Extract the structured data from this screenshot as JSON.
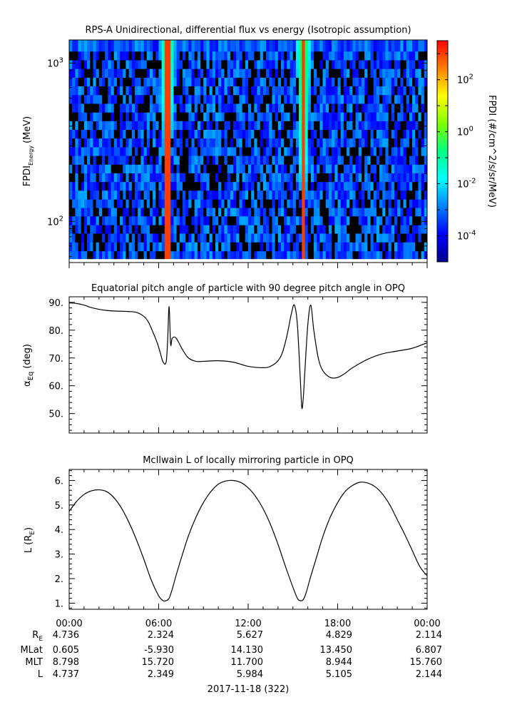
{
  "chart_data": [
    {
      "type": "heatmap",
      "title": "RPS-A Unidirectional, differential flux vs energy (Isotropic assumption)",
      "ylabel_main": "FPDI",
      "ylabel_sub": "Energy",
      "ylabel_unit": "(MeV)",
      "y_scale": "log",
      "ylim": [
        55,
        1400
      ],
      "y_ticks": [
        {
          "value": 100,
          "base": "10",
          "exp": "2"
        },
        {
          "value": 1000,
          "base": "10",
          "exp": "3"
        }
      ],
      "energy_channel_edges_mev": [
        58,
        65,
        74,
        84,
        95,
        108,
        122,
        138,
        157,
        178,
        202,
        229,
        260,
        295,
        335,
        380,
        431,
        489,
        555,
        630,
        715,
        811,
        921,
        1045,
        1186,
        1400
      ],
      "time_bins": 120,
      "flux_peaks_hours": [
        6.6,
        15.7
      ],
      "fill_color": "#000000",
      "colorbar": {
        "label": "FPDI (#/cm^2/s/sr/MeV)",
        "scale": "log",
        "range_log10": [
          -5.0,
          3.5
        ],
        "tick_labels": [
          {
            "value": 2,
            "base": "10",
            "exp": "2"
          },
          {
            "value": 0,
            "base": "10",
            "exp": "0"
          },
          {
            "value": -2,
            "base": "10",
            "exp": "-2"
          },
          {
            "value": -4,
            "base": "10",
            "exp": "-4"
          }
        ],
        "colormap": [
          "#00008f",
          "#0000ff",
          "#0080ff",
          "#00ffff",
          "#00ff80",
          "#80ff00",
          "#ffff00",
          "#ff8000",
          "#ff0000"
        ]
      }
    },
    {
      "type": "line",
      "title": "Equatorial pitch angle of particle with 90 degree pitch angle in OPQ",
      "ylabel_main": "α",
      "ylabel_sub": "Eq",
      "ylabel_unit": "(deg)",
      "ylim": [
        43,
        92
      ],
      "y_ticks": [
        "50.",
        "60.",
        "70.",
        "80.",
        "90."
      ],
      "xlim_hours": [
        0,
        24
      ],
      "series": [
        {
          "x": [
            0,
            0.5,
            1,
            1.5,
            2,
            2.5,
            3,
            3.5,
            4,
            4.5,
            5,
            5.3,
            5.6,
            5.9,
            6.1,
            6.3,
            6.5,
            6.6,
            6.7,
            6.8,
            6.9,
            7.1,
            7.3,
            7.6,
            8,
            8.5,
            9,
            10,
            11,
            12,
            13,
            13.5,
            14,
            14.3,
            14.6,
            14.9,
            15.1,
            15.3,
            15.5,
            15.6,
            15.7,
            15.8,
            16,
            16.2,
            16.4,
            16.7,
            17,
            17.5,
            18,
            18.5,
            19,
            20,
            21,
            22,
            23,
            24
          ],
          "y": [
            89.8,
            89.6,
            89.0,
            88.1,
            87.5,
            87.1,
            86.9,
            86.8,
            86.7,
            86.4,
            85.0,
            83.0,
            79.5,
            75.5,
            72.0,
            68.5,
            68.5,
            76.0,
            88.5,
            75.0,
            77.0,
            77.5,
            76.0,
            73.0,
            70.0,
            68.8,
            68.8,
            69.0,
            68.5,
            67.0,
            66.5,
            67.0,
            69.0,
            72.0,
            78.0,
            86.0,
            89.0,
            82.0,
            62.0,
            52.0,
            56.0,
            65.0,
            82.0,
            89.0,
            80.0,
            70.0,
            65.5,
            63.0,
            63.0,
            64.5,
            66.5,
            69.5,
            71.5,
            72.5,
            73.5,
            75.5
          ]
        }
      ]
    },
    {
      "type": "line",
      "title": "McIlwain L of locally mirroring particle in OPQ",
      "ylabel_main": "L",
      "ylabel_unit_pre": "(R",
      "ylabel_unit_sub": "E",
      "ylabel_unit_post": ")",
      "ylim": [
        0.75,
        6.45
      ],
      "y_ticks": [
        "1.",
        "2.",
        "3.",
        "4.",
        "5.",
        "6."
      ],
      "xlim_hours": [
        0,
        24
      ],
      "series": [
        {
          "x": [
            0,
            0.5,
            1,
            1.5,
            2,
            2.5,
            3,
            3.5,
            4,
            4.5,
            5,
            5.5,
            6,
            6.3,
            6.5,
            6.7,
            6.9,
            7.2,
            7.6,
            8,
            8.5,
            9,
            9.5,
            10,
            10.5,
            11,
            11.5,
            12,
            12.5,
            13,
            13.5,
            14,
            14.5,
            15,
            15.3,
            15.5,
            15.7,
            15.9,
            16.2,
            16.6,
            17,
            17.5,
            18,
            18.5,
            19,
            19.5,
            20,
            20.5,
            21,
            21.5,
            22,
            22.5,
            23,
            23.5,
            24
          ],
          "y": [
            4.74,
            5.15,
            5.43,
            5.58,
            5.62,
            5.55,
            5.3,
            4.88,
            4.3,
            3.6,
            2.8,
            1.95,
            1.3,
            1.1,
            1.1,
            1.2,
            1.55,
            2.2,
            3.0,
            3.75,
            4.5,
            5.1,
            5.55,
            5.85,
            5.98,
            6.0,
            5.92,
            5.7,
            5.35,
            4.85,
            4.2,
            3.4,
            2.5,
            1.65,
            1.2,
            1.1,
            1.15,
            1.45,
            2.1,
            2.9,
            3.7,
            4.5,
            5.1,
            5.55,
            5.8,
            5.93,
            5.9,
            5.75,
            5.45,
            5.0,
            4.4,
            3.8,
            3.15,
            2.5,
            2.11
          ]
        }
      ]
    }
  ],
  "x_axis": {
    "tick_labels": [
      "00:00",
      "06:00",
      "12:00",
      "18:00",
      "00:00"
    ],
    "date_label": "2017-11-18 (322)"
  },
  "ephemeris": {
    "rows": [
      {
        "label": "R",
        "label_sub": "E",
        "values": [
          "4.736",
          "2.324",
          "5.627",
          "4.829",
          "2.114"
        ]
      },
      {
        "label": "MLat",
        "label_sub": "",
        "values": [
          "0.605",
          "-5.930",
          "14.130",
          "13.450",
          "6.807"
        ]
      },
      {
        "label": "MLT",
        "label_sub": "",
        "values": [
          "8.798",
          "15.720",
          "11.700",
          "8.944",
          "15.760"
        ]
      },
      {
        "label": "L",
        "label_sub": "",
        "values": [
          "4.737",
          "2.349",
          "5.984",
          "5.105",
          "2.144"
        ]
      }
    ]
  },
  "colors": {
    "line": "#000000",
    "axis": "#000000"
  }
}
